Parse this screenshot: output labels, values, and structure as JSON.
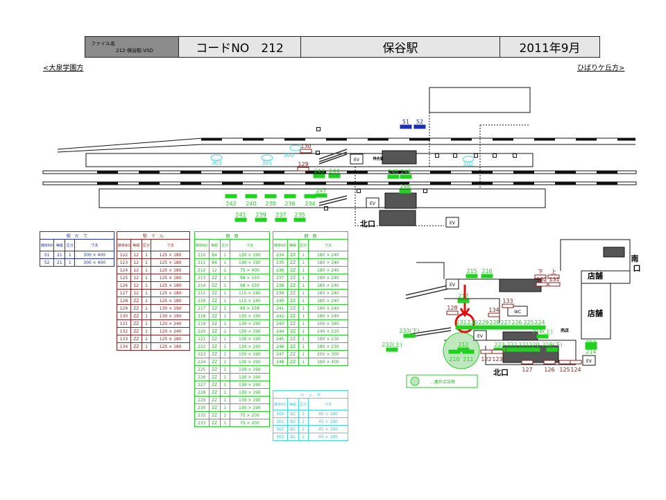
{
  "header": {
    "file_label": "ファイル名",
    "file_name": "212-保谷駅.VSD",
    "code": "コードNO　212",
    "station": "保谷駅",
    "date": "2011年9月"
  },
  "directions": {
    "left": "大泉学園方",
    "right": "ひばりケ丘方"
  },
  "columns": [
    "媒体NO",
    "等級",
    "区分",
    "寸法"
  ],
  "tables": [
    {
      "title": "駅　だ　て",
      "color": "#1f2fb0",
      "rows": [
        [
          "51",
          "21",
          "1",
          "300 × 400"
        ],
        [
          "52",
          "21",
          "1",
          "300 × 400"
        ]
      ]
    },
    {
      "title": "駅　で　ん",
      "color": "#8b1a1a",
      "rows": [
        [
          "122",
          "12",
          "1",
          "125 × 180"
        ],
        [
          "123",
          "12",
          "1",
          "125 × 180"
        ],
        [
          "124",
          "12",
          "1",
          "125 × 180"
        ],
        [
          "125",
          "12",
          "1",
          "125 × 180"
        ],
        [
          "126",
          "12",
          "1",
          "125 × 180"
        ],
        [
          "127",
          "12",
          "1",
          "125 × 180"
        ],
        [
          "128",
          "ZZ",
          "1",
          "125 × 180"
        ],
        [
          "129",
          "ZZ",
          "1",
          "130 × 190"
        ],
        [
          "130",
          "ZZ",
          "1",
          "130 × 190"
        ],
        [
          "131",
          "ZZ",
          "1",
          "120 × 240"
        ],
        [
          "132",
          "ZZ",
          "1",
          "120 × 240"
        ],
        [
          "133",
          "ZZ",
          "1",
          "125 × 180"
        ],
        [
          "134",
          "ZZ",
          "1",
          "125 × 180"
        ]
      ]
    },
    {
      "title": "額　面",
      "color": "#22d022",
      "rows": [
        [
          "210",
          "B4",
          "1",
          "130 × 190"
        ],
        [
          "211",
          "B4",
          "1",
          "130 × 190"
        ],
        [
          "212",
          "12",
          "1",
          "75 × 400"
        ],
        [
          "213",
          "ZZ",
          "1",
          "98 × 150"
        ],
        [
          "214",
          "ZZ",
          "1",
          "98 × 150"
        ],
        [
          "215",
          "ZZ",
          "1",
          "115 × 240"
        ],
        [
          "216",
          "ZZ",
          "1",
          "115 × 240"
        ],
        [
          "217",
          "ZZ",
          "1",
          "89 × 158"
        ],
        [
          "218",
          "ZZ",
          "1",
          "130 × 190"
        ],
        [
          "219",
          "ZZ",
          "1",
          "130 × 190"
        ],
        [
          "220",
          "ZZ",
          "1",
          "130 × 190"
        ],
        [
          "221",
          "ZZ",
          "1",
          "130 × 190"
        ],
        [
          "222",
          "ZZ",
          "1",
          "130 × 190"
        ],
        [
          "223",
          "ZZ",
          "1",
          "130 × 190"
        ],
        [
          "224",
          "ZZ",
          "1",
          "130 × 190"
        ],
        [
          "225",
          "ZZ",
          "1",
          "130 × 190"
        ],
        [
          "226",
          "ZZ",
          "1",
          "130 × 190"
        ],
        [
          "227",
          "ZZ",
          "1",
          "130 × 190"
        ],
        [
          "228",
          "ZZ",
          "1",
          "130 × 190"
        ],
        [
          "229",
          "ZZ",
          "1",
          "130 × 190"
        ],
        [
          "230",
          "ZZ",
          "1",
          "130 × 190"
        ],
        [
          "232",
          "ZZ",
          "1",
          "75 × 200"
        ],
        [
          "233",
          "ZZ",
          "1",
          "75 × 200"
        ]
      ]
    },
    {
      "title": "額　面",
      "color": "#22d022",
      "rows": [
        [
          "234",
          "ZZ",
          "1",
          "180 × 240"
        ],
        [
          "235",
          "ZZ",
          "1",
          "180 × 240"
        ],
        [
          "236",
          "ZZ",
          "1",
          "180 × 240"
        ],
        [
          "237",
          "ZZ",
          "1",
          "180 × 240"
        ],
        [
          "238",
          "ZZ",
          "1",
          "180 × 240"
        ],
        [
          "239",
          "ZZ",
          "1",
          "180 × 240"
        ],
        [
          "240",
          "ZZ",
          "1",
          "180 × 240"
        ],
        [
          "241",
          "ZZ",
          "1",
          "180 × 240"
        ],
        [
          "242",
          "ZZ",
          "1",
          "180 × 240"
        ],
        [
          "243",
          "ZZ",
          "1",
          "100 × 340"
        ],
        [
          "244",
          "ZZ",
          "1",
          "240 × 210"
        ],
        [
          "245",
          "ZZ",
          "1",
          "180 × 230"
        ],
        [
          "246",
          "ZZ",
          "1",
          "180 × 230"
        ],
        [
          "247",
          "ZZ",
          "1",
          "200 × 300"
        ],
        [
          "248",
          "ZZ",
          "1",
          "190 × 400"
        ]
      ]
    },
    {
      "title": "ベ　ン　チ",
      "color": "#3cd8e8",
      "rows": [
        [
          "300",
          "B2",
          "2",
          "45 × 180"
        ],
        [
          "301",
          "B2",
          "2",
          "45 × 180"
        ],
        [
          "302",
          "B2",
          "2",
          "45 × 180"
        ],
        [
          "303",
          "B2",
          "2",
          "45 × 180"
        ]
      ]
    }
  ],
  "diagram": {
    "labels": [
      "130",
      "129",
      "300",
      "303",
      "301",
      "302",
      "243",
      "244",
      "247",
      "242",
      "240",
      "238",
      "236",
      "234",
      "241",
      "239",
      "237",
      "235",
      "245",
      "246",
      "248",
      "51",
      "52",
      "215",
      "216",
      "217",
      "128",
      "133",
      "134",
      "下",
      "上",
      "132",
      "131",
      "231",
      "230",
      "229",
      "228",
      "227",
      "226",
      "225",
      "224",
      "223",
      "222",
      "221",
      "220",
      "218(上)",
      "219(下)",
      "233(下)",
      "232(上)",
      "212",
      "210",
      "211",
      "122",
      "123",
      "127",
      "126",
      "125",
      "124",
      "213",
      "214"
    ],
    "places": [
      "北口",
      "北口",
      "南",
      "口",
      "店舗",
      "店舗",
      "待合室",
      "売店"
    ],
    "boxes": [
      "EV",
      "WC"
    ],
    "legend": "…屋外広告物",
    "colors": {
      "dendo": "#8b1a1a",
      "gakumen": "#22d022",
      "bench": "#3cd8e8",
      "date": "#1f2fb0",
      "highlight": "#e01010"
    }
  }
}
